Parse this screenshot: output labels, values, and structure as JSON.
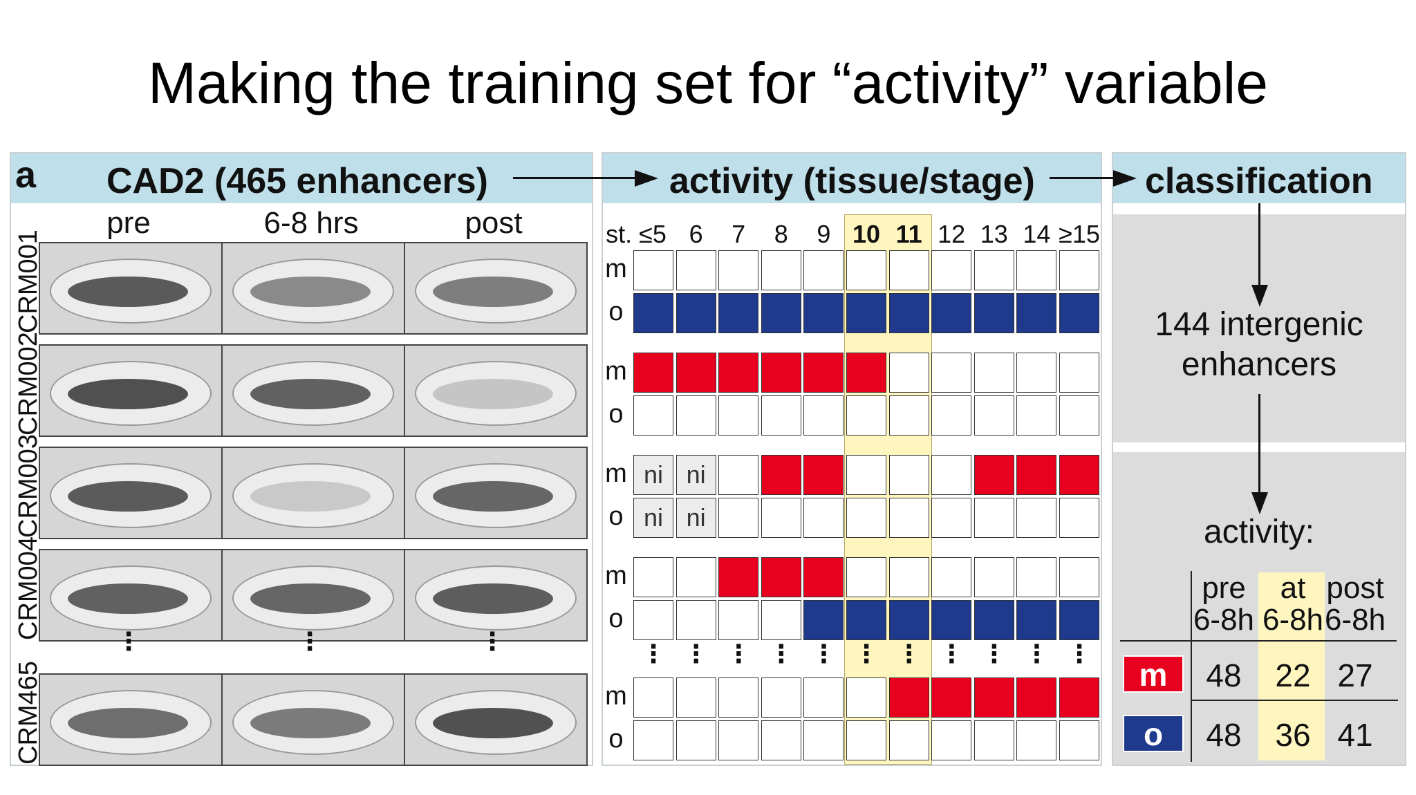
{
  "slide_title": "Making the training set for “activity” variable",
  "panel_letter": "a",
  "headers": {
    "cad2": "CAD2  (465 enhancers)",
    "activity": "activity (tissue/stage)",
    "classification": "classification"
  },
  "image_columns": [
    "pre",
    "6-8 hrs",
    "post"
  ],
  "crm_rows": [
    "CRM001",
    "CRM002",
    "CRM003",
    "CRM004",
    "CRM465"
  ],
  "stages": [
    "st. ≤5",
    "6",
    "7",
    "8",
    "9",
    "10",
    "11",
    "12",
    "13",
    "14",
    "≥15"
  ],
  "highlighted_stages": [
    "10",
    "11"
  ],
  "row_labels": {
    "m": "m",
    "o": "o"
  },
  "activity_matrix": [
    {
      "crm": "CRM001",
      "m": [
        "w",
        "w",
        "w",
        "w",
        "w",
        "w",
        "w",
        "w",
        "w",
        "w",
        "w"
      ],
      "o": [
        "b",
        "b",
        "b",
        "b",
        "b",
        "b",
        "b",
        "b",
        "b",
        "b",
        "b"
      ]
    },
    {
      "crm": "CRM002",
      "m": [
        "r",
        "r",
        "r",
        "r",
        "r",
        "r",
        "w",
        "w",
        "w",
        "w",
        "w"
      ],
      "o": [
        "w",
        "w",
        "w",
        "w",
        "w",
        "w",
        "w",
        "w",
        "w",
        "w",
        "w"
      ]
    },
    {
      "crm": "CRM003",
      "m": [
        "ni",
        "ni",
        "w",
        "r",
        "r",
        "w",
        "w",
        "w",
        "r",
        "r",
        "r"
      ],
      "o": [
        "ni",
        "ni",
        "w",
        "w",
        "w",
        "w",
        "w",
        "w",
        "w",
        "w",
        "w"
      ]
    },
    {
      "crm": "CRM004",
      "m": [
        "w",
        "w",
        "r",
        "r",
        "r",
        "w",
        "w",
        "w",
        "w",
        "w",
        "w"
      ],
      "o": [
        "w",
        "w",
        "w",
        "w",
        "b",
        "b",
        "b",
        "b",
        "b",
        "b",
        "b"
      ]
    },
    {
      "crm": "CRM465",
      "m": [
        "w",
        "w",
        "w",
        "w",
        "w",
        "w",
        "r",
        "r",
        "r",
        "r",
        "r"
      ],
      "o": [
        "w",
        "w",
        "w",
        "w",
        "w",
        "w",
        "w",
        "w",
        "w",
        "w",
        "w"
      ]
    }
  ],
  "ni_label": "ni",
  "dots": "⋮",
  "classification": {
    "count_text_1": "144 intergenic",
    "count_text_2": "enhancers",
    "activity_label": "activity:",
    "columns": [
      {
        "top": "pre",
        "bottom": "6-8h"
      },
      {
        "top": "at",
        "bottom": "6-8h"
      },
      {
        "top": "post",
        "bottom": "6-8h"
      }
    ],
    "rows": [
      {
        "label": "m",
        "color": "#e8001f",
        "values": [
          "48",
          "22",
          "27"
        ]
      },
      {
        "label": "o",
        "color": "#1f3a8c",
        "values": [
          "48",
          "36",
          "41"
        ]
      }
    ]
  },
  "colors": {
    "red": "#e8001f",
    "blue": "#1f3a8c",
    "header": "#bfe0ea",
    "highlight": "#fff6bf"
  }
}
